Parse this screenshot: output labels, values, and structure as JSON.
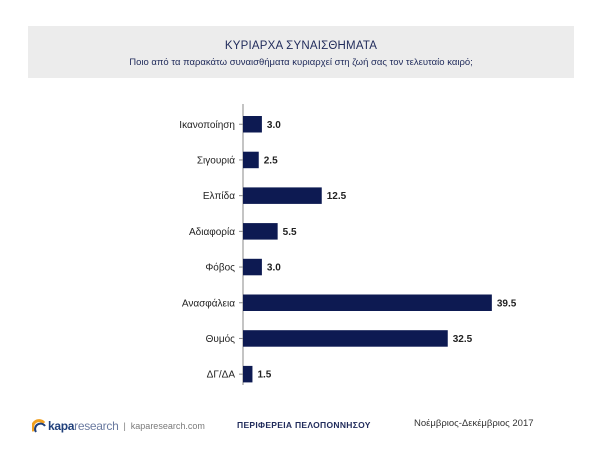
{
  "header": {
    "title": "ΚΥΡΙΑΡΧΑ ΣΥΝΑΙΣΘΗΜΑΤΑ",
    "subtitle": "Ποιο από τα παρακάτω συναισθήματα κυριαρχεί στη ζωή σας τον τελευταίο καιρό;"
  },
  "chart_data": {
    "type": "bar",
    "orientation": "horizontal",
    "categories": [
      "Ικανοποίηση",
      "Σιγουριά",
      "Ελπίδα",
      "Αδιαφορία",
      "Φόβος",
      "Ανασφάλεια",
      "Θυμός",
      "ΔΓ/ΔΑ"
    ],
    "values": [
      3.0,
      2.5,
      12.5,
      5.5,
      3.0,
      39.5,
      32.5,
      1.5
    ],
    "value_labels": [
      "3.0",
      "2.5",
      "12.5",
      "5.5",
      "3.0",
      "39.5",
      "32.5",
      "1.5"
    ],
    "xlim": [
      0,
      40
    ],
    "bar_color": "#0d1a52",
    "grid": false,
    "title": "ΚΥΡΙΑΡΧΑ ΣΥΝΑΙΣΘΗΜΑΤΑ"
  },
  "footer": {
    "logo_bold": "kapa",
    "logo_light": "research",
    "separator": "|",
    "url": "kaparesearch.com",
    "region": "ΠΕΡΙΦΕΡΕΙΑ ΠΕΛΟΠΟΝΝΗΣΟΥ",
    "period": "Νοέμβριος-Δεκέμβριος 2017"
  }
}
